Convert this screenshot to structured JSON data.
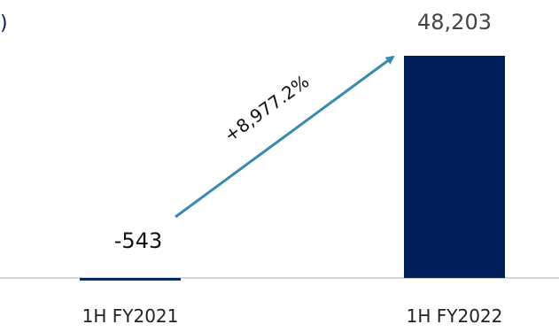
{
  "header_fragment": ")",
  "chart_data": {
    "type": "bar",
    "categories": [
      "1H FY2021",
      "1H FY2022"
    ],
    "values": [
      -543,
      48203
    ],
    "value_labels": [
      "-543",
      "48,203"
    ],
    "annotation": "+8,977.2%",
    "ylim": [
      -1000,
      48203
    ],
    "grid": false,
    "legend": "none",
    "colors": {
      "bar": "#00205b",
      "arrow": "#3a89b0",
      "baseline": "#c8c8c8",
      "text": "#222222"
    }
  }
}
